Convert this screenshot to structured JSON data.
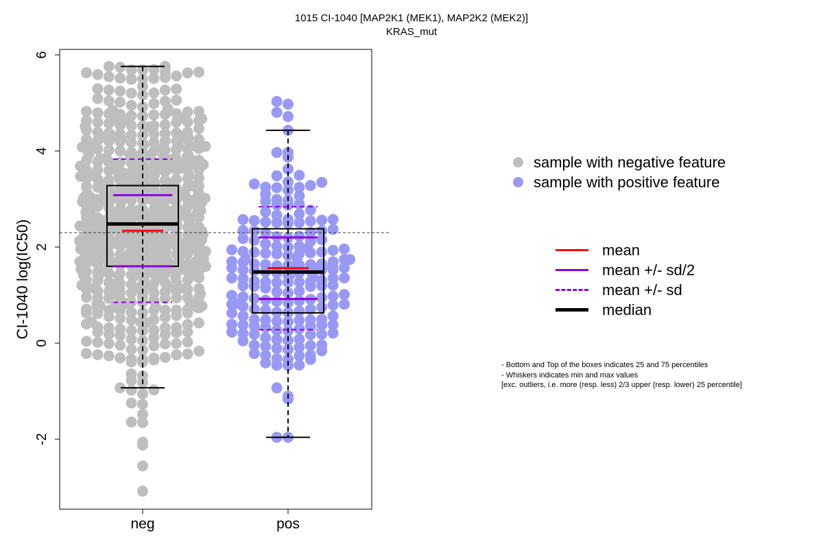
{
  "title": "1015 CI-1040 [MAP2K1 (MEK1), MAP2K2 (MEK2)]",
  "subtitle": "KRAS_mut",
  "chart_data": {
    "type": "box-scatter",
    "title": "1015 CI-1040 [MAP2K1 (MEK1), MAP2K2 (MEK2)]",
    "subtitle": "KRAS_mut",
    "xlabel": "",
    "ylabel": "CI-1040 log(IC50)",
    "categories": [
      "neg",
      "pos"
    ],
    "ylim": [
      -3.5,
      6.1
    ],
    "yticks": [
      -2,
      0,
      2,
      4,
      6
    ],
    "overall_reference_line": 2.3,
    "groups": [
      {
        "name": "neg",
        "color": "#bebebe",
        "whisker_min": -0.93,
        "q1": 1.6,
        "median": 2.48,
        "q3": 3.28,
        "whisker_max": 5.76,
        "mean": 2.34,
        "mean_minus_half_sd": 1.6,
        "mean_plus_half_sd": 3.08,
        "mean_minus_sd": 0.85,
        "mean_plus_sd": 3.83,
        "n_points": 700,
        "min_value": -3.08,
        "max_value": 5.76
      },
      {
        "name": "pos",
        "color": "#9999f5",
        "whisker_min": -1.96,
        "q1": 0.63,
        "median": 1.48,
        "q3": 2.38,
        "whisker_max": 4.43,
        "mean": 1.56,
        "mean_minus_half_sd": 0.92,
        "mean_plus_half_sd": 2.2,
        "mean_minus_sd": 0.28,
        "mean_plus_sd": 2.84,
        "n_points": 200,
        "min_value": -1.96,
        "max_value": 5.03
      }
    ],
    "legend_points": [
      {
        "label": "sample with negative feature",
        "color": "#bebebe"
      },
      {
        "label": "sample with positive feature",
        "color": "#9999f5"
      }
    ],
    "legend_lines": [
      {
        "label": "mean",
        "color": "#ff0000",
        "style": "solid"
      },
      {
        "label": "mean +/- sd/2",
        "color": "#8b00e0",
        "style": "solid"
      },
      {
        "label": "mean +/- sd",
        "color": "#8b00e0",
        "style": "dashed"
      },
      {
        "label": "median",
        "color": "#000000",
        "style": "solid-thick"
      }
    ],
    "notes": [
      "- Bottom and Top of the boxes indicates 25 and 75 percentiles",
      "- Whiskers indicates min and max values",
      "[exc. outliers, i.e. more (resp. less) 2/3 upper (resp. lower) 25 percentile]"
    ]
  }
}
